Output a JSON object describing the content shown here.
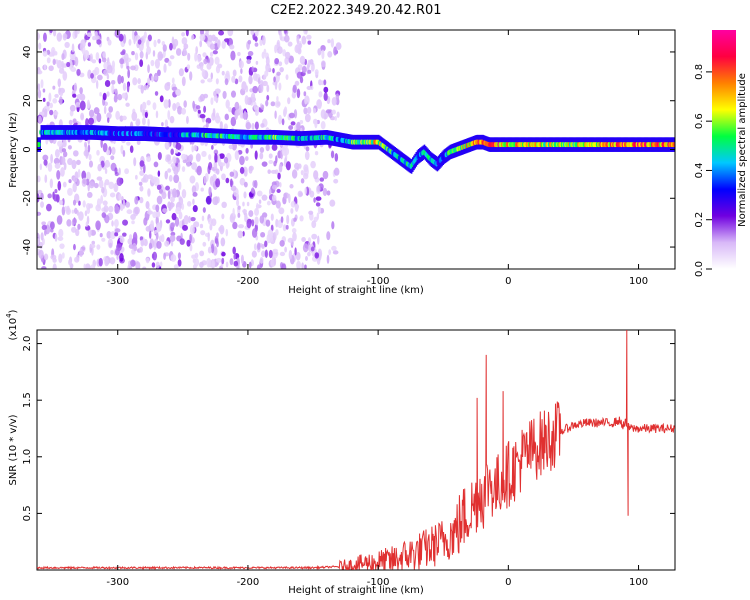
{
  "title": "C2E2.2022.349.20.42.R01",
  "chart_data": [
    {
      "type": "heatmap",
      "xlabel": "Height of straight line (km)",
      "ylabel": "Frequency (Hz)",
      "xlim": [
        -362,
        128
      ],
      "ylim": [
        -49,
        49
      ],
      "xticks": [
        -300,
        -200,
        -100,
        0,
        100
      ],
      "xtick_labels": [
        "-300",
        "-200",
        "-100",
        "0",
        "100"
      ],
      "yticks": [
        -40,
        -20,
        0,
        20,
        40
      ],
      "ytick_labels": [
        "-40",
        "-20",
        "0",
        "20",
        "40"
      ],
      "colorbar": {
        "label": "Normalized spectral amplitude",
        "range": [
          0.0,
          0.97
        ],
        "ticks": [
          0.0,
          0.2,
          0.4,
          0.6,
          0.8
        ],
        "tick_labels": [
          "0.0",
          "0.2",
          "0.4",
          "0.6",
          "0.8"
        ],
        "colormap": [
          "#ffffff",
          "#d8b8f8",
          "#7000e0",
          "#0000ff",
          "#00c8ff",
          "#00ff40",
          "#ffff00",
          "#ff8000",
          "#ff0040",
          "#ff00a0"
        ]
      },
      "ridge": {
        "x": [
          -360,
          -340,
          -320,
          -300,
          -280,
          -260,
          -240,
          -220,
          -200,
          -180,
          -160,
          -140,
          -130,
          -120,
          -110,
          -100,
          -95,
          -90,
          -85,
          -80,
          -75,
          -70,
          -65,
          -60,
          -55,
          -50,
          -45,
          -40,
          -35,
          -30,
          -25,
          -20,
          -15,
          -10,
          -5,
          0,
          20,
          40,
          60,
          80,
          100,
          128
        ],
        "freq": [
          7,
          7,
          7,
          6.5,
          6.5,
          6,
          6,
          5.5,
          5,
          5,
          4.5,
          5,
          4,
          3,
          3,
          3,
          1,
          -1,
          -3,
          -5,
          -7,
          -3,
          -1,
          -4,
          -6,
          -3,
          -1,
          0,
          1,
          2,
          3,
          3,
          2,
          2,
          2,
          2,
          2,
          2,
          2,
          2,
          2,
          2
        ],
        "amplitude": [
          0.45,
          0.4,
          0.42,
          0.35,
          0.38,
          0.32,
          0.48,
          0.5,
          0.42,
          0.55,
          0.45,
          0.5,
          0.4,
          0.55,
          0.6,
          0.7,
          0.55,
          0.5,
          0.45,
          0.5,
          0.45,
          0.4,
          0.45,
          0.5,
          0.35,
          0.35,
          0.55,
          0.6,
          0.65,
          0.7,
          0.75,
          0.8,
          0.78,
          0.8,
          0.75,
          0.72,
          0.65,
          0.62,
          0.65,
          0.75,
          0.8,
          0.75
        ]
      },
      "noise_extent_x": [
        -362,
        -130
      ]
    },
    {
      "type": "line",
      "xlabel": "Height of straight line (km)",
      "ylabel": "SNR (10 * v/v)",
      "y_scale_label": "(x10",
      "y_scale_exp": "4",
      "xlim": [
        -362,
        128
      ],
      "ylim": [
        0,
        2.12
      ],
      "xticks": [
        -300,
        -200,
        -100,
        0,
        100
      ],
      "xtick_labels": [
        "-300",
        "-200",
        "-100",
        "0",
        "100"
      ],
      "yticks": [
        0.5,
        1.0,
        1.5,
        2.0
      ],
      "ytick_labels": [
        "0.5",
        "1.0",
        "1.5",
        "2.0"
      ],
      "color": "#e03030",
      "series": [
        {
          "x": [
            -362,
            -300,
            -250,
            -200,
            -150,
            -130,
            -120,
            -110,
            -100,
            -90,
            -80,
            -70,
            -60,
            -50,
            -40,
            -35,
            -30,
            -25,
            -22,
            -19,
            -15,
            -10,
            -5,
            0,
            5,
            10,
            20,
            30,
            40,
            50,
            60,
            70,
            80,
            85,
            88,
            90,
            92,
            95,
            100,
            110,
            128
          ],
          "y": [
            0.02,
            0.02,
            0.02,
            0.02,
            0.02,
            0.03,
            0.04,
            0.06,
            0.07,
            0.08,
            0.12,
            0.16,
            0.2,
            0.26,
            0.35,
            0.45,
            0.52,
            0.6,
            0.7,
            0.65,
            0.8,
            0.7,
            0.8,
            0.85,
            0.9,
            0.98,
            1.08,
            1.15,
            1.22,
            1.28,
            1.3,
            1.3,
            1.3,
            1.32,
            1.28,
            1.3,
            1.26,
            1.25,
            1.25,
            1.25,
            1.25
          ]
        }
      ],
      "spikes": [
        {
          "x": -24,
          "y": 1.52
        },
        {
          "x": -17,
          "y": 1.9
        },
        {
          "x": -4,
          "y": 1.58
        },
        {
          "x": 91,
          "y": 2.12
        },
        {
          "x": 92,
          "y": 0.48
        }
      ]
    }
  ]
}
